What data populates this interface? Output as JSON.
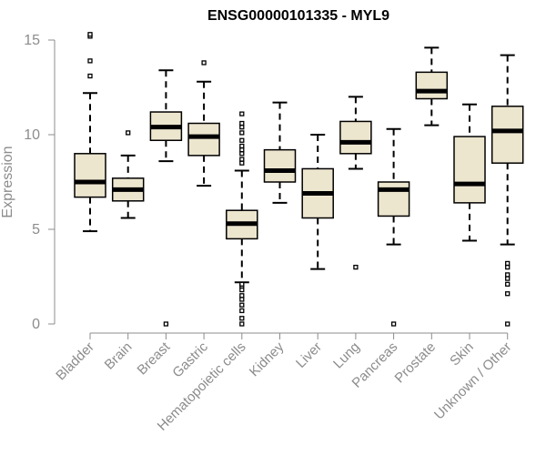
{
  "chart_data": {
    "type": "boxplot",
    "title": "ENSG00000101335 - MYL9",
    "ylabel": "Expression",
    "xlabel": "",
    "ylim": [
      0,
      15
    ],
    "yticks": [
      0,
      5,
      10,
      15
    ],
    "box_fill": "#ede6cf",
    "box_stroke": "#000000",
    "axis_color": "#8c8c8c",
    "categories": [
      "Bladder",
      "Brain",
      "Breast",
      "Gastric",
      "Hematopoietic cells",
      "Kidney",
      "Liver",
      "Lung",
      "Pancreas",
      "Prostate",
      "Skin",
      "Unknown / Other"
    ],
    "series": [
      {
        "category": "Bladder",
        "whisker_low": 4.9,
        "q1": 6.7,
        "median": 7.5,
        "q3": 9.0,
        "whisker_high": 12.2,
        "outliers": [
          13.1,
          13.9,
          15.2,
          15.3
        ]
      },
      {
        "category": "Brain",
        "whisker_low": 5.6,
        "q1": 6.5,
        "median": 7.1,
        "q3": 7.7,
        "whisker_high": 8.9,
        "outliers": [
          10.1
        ]
      },
      {
        "category": "Breast",
        "whisker_low": 8.6,
        "q1": 9.7,
        "median": 10.4,
        "q3": 11.2,
        "whisker_high": 13.4,
        "outliers": [
          0.0
        ]
      },
      {
        "category": "Gastric",
        "whisker_low": 7.3,
        "q1": 8.9,
        "median": 9.9,
        "q3": 10.6,
        "whisker_high": 12.8,
        "outliers": [
          13.8
        ]
      },
      {
        "category": "Hematopoietic cells",
        "whisker_low": 2.2,
        "q1": 4.5,
        "median": 5.3,
        "q3": 6.0,
        "whisker_high": 8.1,
        "outliers": [
          0.0,
          0.3,
          0.7,
          1.0,
          1.3,
          1.5,
          1.8,
          2.0,
          2.1,
          8.5,
          8.7,
          9.0,
          9.2,
          9.4,
          9.7,
          10.1,
          10.4,
          10.6,
          11.1
        ]
      },
      {
        "category": "Kidney",
        "whisker_low": 6.4,
        "q1": 7.5,
        "median": 8.1,
        "q3": 9.2,
        "whisker_high": 11.7,
        "outliers": []
      },
      {
        "category": "Liver",
        "whisker_low": 2.9,
        "q1": 5.6,
        "median": 6.9,
        "q3": 8.2,
        "whisker_high": 10.0,
        "outliers": []
      },
      {
        "category": "Lung",
        "whisker_low": 8.2,
        "q1": 9.0,
        "median": 9.6,
        "q3": 10.7,
        "whisker_high": 12.0,
        "outliers": [
          3.0
        ]
      },
      {
        "category": "Pancreas",
        "whisker_low": 4.2,
        "q1": 5.7,
        "median": 7.1,
        "q3": 7.5,
        "whisker_high": 10.3,
        "outliers": [
          0.0
        ]
      },
      {
        "category": "Prostate",
        "whisker_low": 10.5,
        "q1": 11.9,
        "median": 12.3,
        "q3": 13.3,
        "whisker_high": 14.6,
        "outliers": []
      },
      {
        "category": "Skin",
        "whisker_low": 4.4,
        "q1": 6.4,
        "median": 7.4,
        "q3": 9.9,
        "whisker_high": 11.6,
        "outliers": []
      },
      {
        "category": "Unknown / Other",
        "whisker_low": 4.2,
        "q1": 8.5,
        "median": 10.2,
        "q3": 11.5,
        "whisker_high": 14.2,
        "outliers": [
          0.0,
          1.6,
          2.1,
          2.4,
          2.6,
          3.0,
          3.2
        ]
      }
    ]
  }
}
